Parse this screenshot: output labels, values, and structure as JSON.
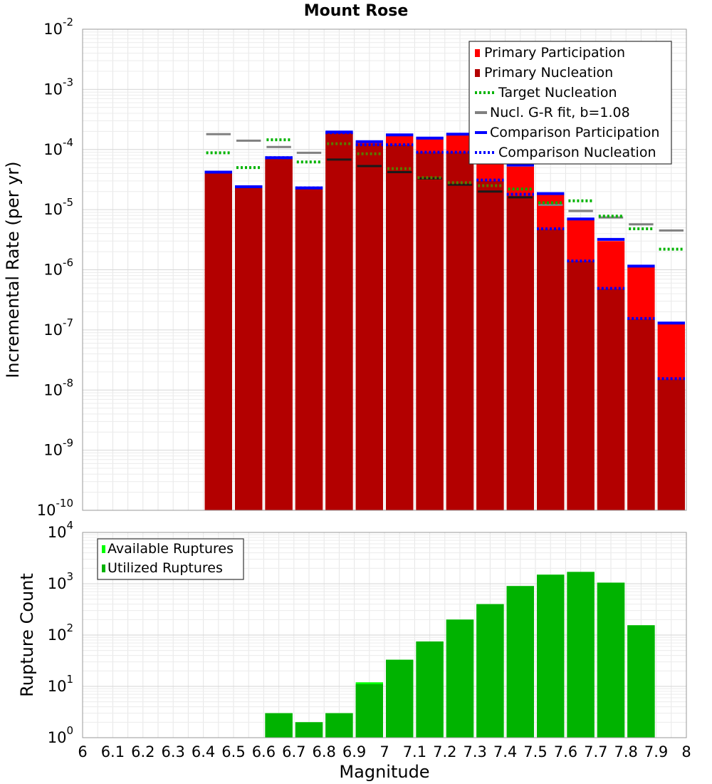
{
  "chart_data": [
    {
      "type": "bar",
      "title": "Mount Rose",
      "xlabel": "Magnitude",
      "ylabel": "Incremental Rate (per yr)",
      "y_scale": "log",
      "ylim": [
        1e-10,
        0.01
      ],
      "xlim": [
        6.0,
        8.0
      ],
      "grid": true,
      "legend_position": "top-right",
      "x": [
        6.45,
        6.55,
        6.65,
        6.75,
        6.85,
        6.95,
        7.05,
        7.15,
        7.25,
        7.35,
        7.45,
        7.55,
        7.65,
        7.75,
        7.85,
        7.95
      ],
      "y_tick_labels": [
        {
          "base": "10",
          "exp": "-10"
        },
        {
          "base": "10",
          "exp": "-9"
        },
        {
          "base": "10",
          "exp": "-8"
        },
        {
          "base": "10",
          "exp": "-7"
        },
        {
          "base": "10",
          "exp": "-6"
        },
        {
          "base": "10",
          "exp": "-5"
        },
        {
          "base": "10",
          "exp": "-4"
        },
        {
          "base": "10",
          "exp": "-3"
        },
        {
          "base": "10",
          "exp": "-2"
        }
      ],
      "legend": [
        "Primary Participation",
        "Primary Nucleation",
        "Target Nucleation",
        "Nucl. G-R fit, b=1.08",
        "Comparison Participation",
        "Comparison Nucleation"
      ],
      "series": [
        {
          "name": "Primary Participation",
          "color": "#ff0000",
          "values": [
            4e-05,
            2.3e-05,
            7e-05,
            2.2e-05,
            0.00019,
            0.00013,
            0.00017,
            0.00015,
            0.000175,
            8e-05,
            5.2e-05,
            1.8e-05,
            6.8e-06,
            3e-06,
            1.1e-06,
            1.25e-07
          ]
        },
        {
          "name": "Primary Nucleation",
          "color": "#b30000",
          "values": [
            4e-05,
            2.3e-05,
            7e-05,
            2.2e-05,
            0.00019,
            0.000125,
            0.00012,
            9e-05,
            9e-05,
            3e-05,
            1.7e-05,
            4.7e-06,
            1.4e-06,
            4.8e-07,
            1.5e-07,
            1.5e-08
          ]
        },
        {
          "name": "Target Nucleation",
          "color": "#00b300",
          "values": [
            8.8e-05,
            5e-05,
            0.000145,
            6.2e-05,
            0.000125,
            8.5e-05,
            4.8e-05,
            3.4e-05,
            2.8e-05,
            2.5e-05,
            2.2e-05,
            1.3e-05,
            1.4e-05,
            7.8e-06,
            4.8e-06,
            2.2e-06
          ]
        },
        {
          "name": "Nucl. G-R fit, b=1.08",
          "color": "#808080",
          "values": [
            0.00018,
            0.00014,
            0.00011,
            8.8e-05,
            6.8e-05,
            5.3e-05,
            4.2e-05,
            3.3e-05,
            2.6e-05,
            2e-05,
            1.6e-05,
            1.2e-05,
            9.5e-06,
            7.4e-06,
            5.7e-06,
            4.5e-06
          ]
        },
        {
          "name": "Comparison Participation",
          "color": "#0000ff",
          "values": [
            4.2e-05,
            2.4e-05,
            7.3e-05,
            2.3e-05,
            0.000195,
            0.000135,
            0.000175,
            0.000155,
            0.00018,
            8.5e-05,
            5.5e-05,
            1.85e-05,
            7e-06,
            3.2e-06,
            1.15e-06,
            1.3e-07
          ]
        },
        {
          "name": "Comparison Nucleation",
          "color": "#0000ff",
          "values": [
            4.2e-05,
            2.4e-05,
            7.3e-05,
            2.3e-05,
            0.00019,
            0.00012,
            0.00012,
            9e-05,
            9e-05,
            3.1e-05,
            1.8e-05,
            4.8e-06,
            1.4e-06,
            4.9e-07,
            1.55e-07,
            1.55e-08
          ]
        }
      ]
    },
    {
      "type": "bar",
      "xlabel": "Magnitude",
      "ylabel": "Rupture Count",
      "y_scale": "log",
      "ylim": [
        1,
        10000
      ],
      "xlim": [
        6.0,
        8.0
      ],
      "grid": true,
      "legend_position": "top-left",
      "x": [
        6.65,
        6.75,
        6.85,
        6.95,
        7.05,
        7.15,
        7.25,
        7.35,
        7.45,
        7.55,
        7.65,
        7.75,
        7.85
      ],
      "x_tick_labels": [
        "6",
        "6.1",
        "6.2",
        "6.3",
        "6.4",
        "6.5",
        "6.6",
        "6.7",
        "6.8",
        "6.9",
        "7",
        "7.1",
        "7.2",
        "7.3",
        "7.4",
        "7.5",
        "7.6",
        "7.7",
        "7.8",
        "7.9",
        "8"
      ],
      "y_tick_labels": [
        {
          "base": "10",
          "exp": "0"
        },
        {
          "base": "10",
          "exp": "1"
        },
        {
          "base": "10",
          "exp": "2"
        },
        {
          "base": "10",
          "exp": "3"
        },
        {
          "base": "10",
          "exp": "4"
        }
      ],
      "legend": [
        "Available Ruptures",
        "Utilized Ruptures"
      ],
      "series": [
        {
          "name": "Available Ruptures",
          "color": "#00ff00",
          "values": [
            3,
            2,
            3,
            12,
            33,
            75,
            200,
            400,
            900,
            1500,
            1700,
            1050,
            155
          ]
        },
        {
          "name": "Utilized Ruptures",
          "color": "#00b300",
          "values": [
            3,
            2,
            3,
            11,
            33,
            75,
            200,
            400,
            900,
            1500,
            1700,
            1050,
            155
          ]
        }
      ]
    }
  ]
}
